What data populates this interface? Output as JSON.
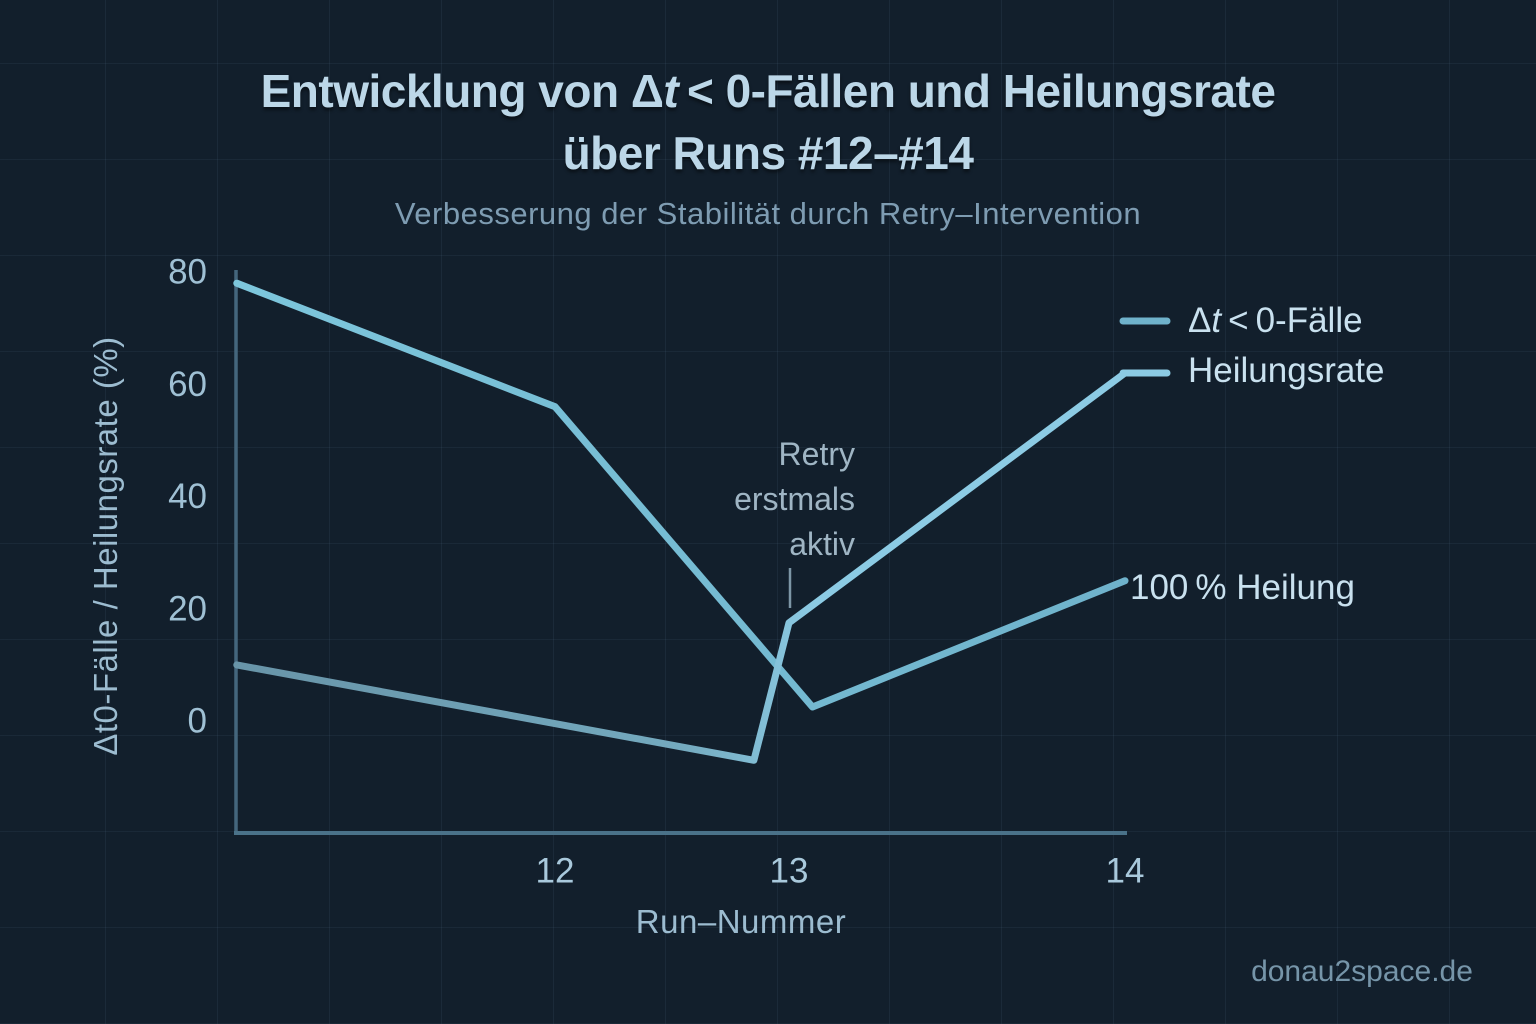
{
  "title": {
    "prefix": "Entwicklung von Δ",
    "italic_t": "t",
    "suffix": " < 0-Fällen und Heilungsrate",
    "line2": "über Runs #12–#14"
  },
  "subtitle": "Verbesserung der Stabilität durch Retry–Intervention",
  "legend": [
    {
      "prefix": "Δ",
      "italic_t": "t",
      "suffix": " < 0-Fälle"
    },
    {
      "label": "Heilungsrate"
    }
  ],
  "annotations": {
    "retry": {
      "line1": "Retry",
      "line2": "erstmals",
      "line3": "aktiv"
    },
    "heilung": {
      "text": "100 % Heilung"
    }
  },
  "watermark": "donau2space.de",
  "chart_data": {
    "type": "line",
    "title": "Entwicklung von Δt < 0-Fällen und Heilungsrate über Runs #12–#14",
    "subtitle": "Verbesserung der Stabilität durch Retry–Intervention",
    "xlabel": "Run–Nummer",
    "ylabel": "Δt0-Fälle / Heilungsrate (%)",
    "x_ticks": [
      12,
      13,
      14
    ],
    "y_ticks": [
      0,
      20,
      40,
      60,
      80
    ],
    "ylim": [
      -20,
      82
    ],
    "grid": true,
    "legend_position": "upper right inside",
    "series": [
      {
        "name": "Δt<0-Fälle",
        "color_start": "#7dc6dc",
        "color_end": "#6fb2cb",
        "points": [
          [
            10.64,
            78
          ],
          [
            12,
            56
          ],
          [
            13.07,
            2.5
          ],
          [
            14,
            25
          ]
        ]
      },
      {
        "name": "Heilungsrate",
        "color_start": "#6894a8",
        "color_mid": "#74aabf",
        "color_end": "#8ccbe4",
        "points": [
          [
            10.64,
            10
          ],
          [
            12.85,
            -7
          ],
          [
            13,
            17.5
          ],
          [
            14,
            62
          ]
        ]
      }
    ],
    "annotations": [
      {
        "text": "Retry erstmals aktiv",
        "x": 13,
        "y": 22
      },
      {
        "text": "100 % Heilung",
        "x": 14,
        "y": 25
      }
    ]
  }
}
